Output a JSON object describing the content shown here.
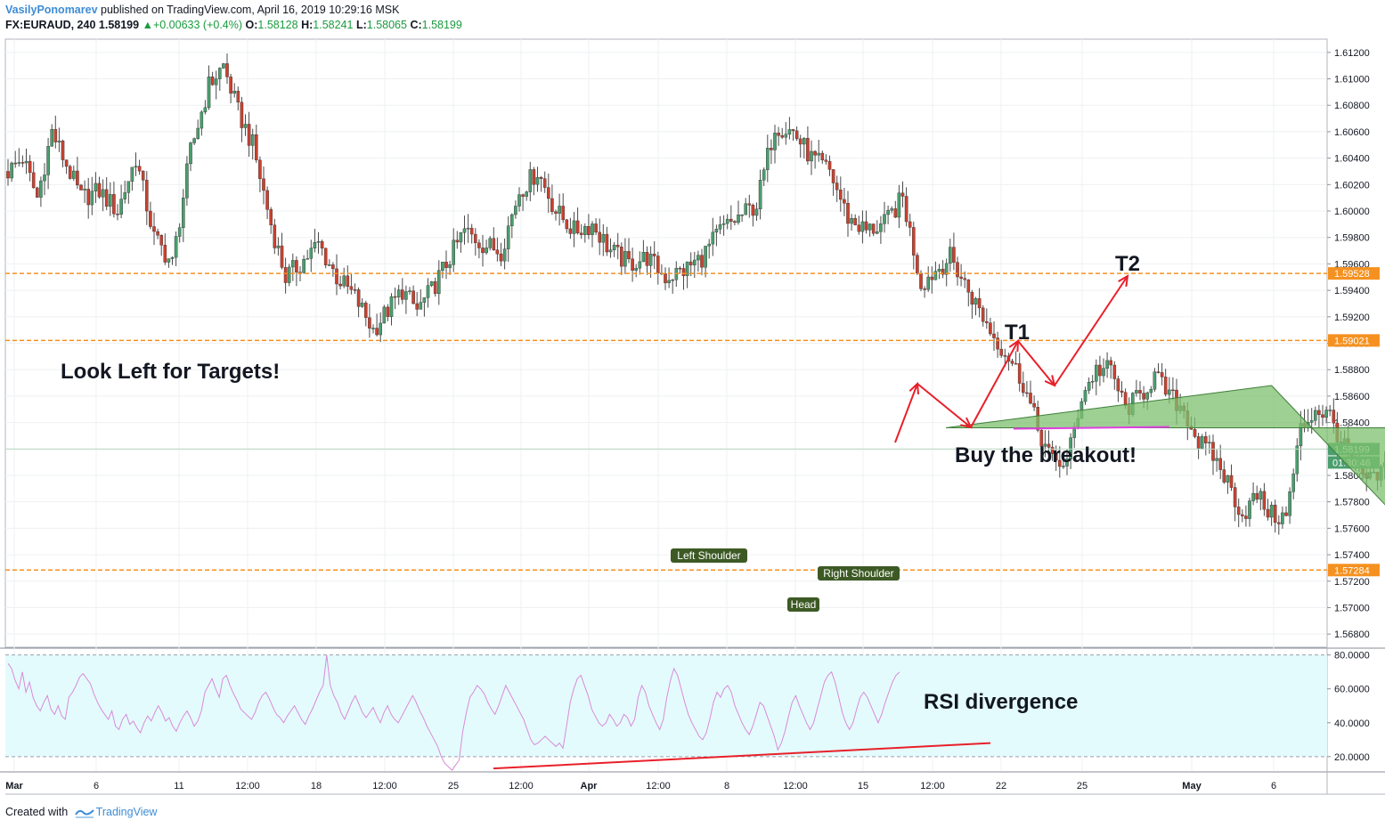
{
  "header": {
    "author": "VasilyPonomarev",
    "published_text": "published on TradingView.com, April 16, 2019 10:29:16 MSK",
    "symbol": "FX:EURAUD, 240",
    "last": "1.58199",
    "change_arrow": "▲",
    "change": "+0.00633 (+0.4%)",
    "o_label": "O:",
    "o_value": "1.58128",
    "h_label": "H:",
    "h_value": "1.58241",
    "l_label": "L:",
    "l_value": "1.58065",
    "c_label": "C:",
    "c_value": "1.58199"
  },
  "footer": {
    "created_with": "Created with",
    "brand": "TradingView",
    "logo_icon": "tradingview-logo-icon"
  },
  "colors": {
    "up": "#4b9e6e",
    "down": "#c9412f",
    "level": "#f59120",
    "neckline": "#e040e0",
    "arrow": "#e8202a",
    "pattern_fill": "#7cc06e",
    "rsi_line": "#d98ad9",
    "rsi_band": "#e4fbfd"
  },
  "annotations": {
    "look_left": "Look Left for Targets!",
    "buy_breakout": "Buy the breakout!",
    "t1": "T1",
    "t2": "T2",
    "rsi_divergence": "RSI divergence",
    "left_shoulder": "Left Shoulder",
    "head": "Head",
    "right_shoulder": "Right Shoulder"
  },
  "chart_data": [
    {
      "type": "candlestick",
      "symbol": "FX:EURAUD, 240",
      "ylim": [
        1.567,
        1.613
      ],
      "y_ticks": [
        "1.61200",
        "1.61000",
        "1.60800",
        "1.60600",
        "1.60400",
        "1.60200",
        "1.60000",
        "1.59800",
        "1.59600",
        "1.59400",
        "1.59200",
        "1.59000",
        "1.58800",
        "1.58600",
        "1.58400",
        "1.58200",
        "1.58000",
        "1.57800",
        "1.57600",
        "1.57400",
        "1.57200",
        "1.57000",
        "1.56800"
      ],
      "x_ticks": [
        "Mar",
        "6",
        "11",
        "12:00",
        "18",
        "12:00",
        "25",
        "12:00",
        "Apr",
        "12:00",
        "8",
        "12:00",
        "15",
        "12:00",
        "22",
        "25",
        "May",
        "6"
      ],
      "levels": [
        {
          "label": "1.59528",
          "value": 1.59528
        },
        {
          "label": "1.59021",
          "value": 1.59021
        },
        {
          "label": "1.57284",
          "value": 1.57284
        }
      ],
      "neckline": 1.5836,
      "last_price_label": "1.58199",
      "last_price": 1.58199,
      "countdown_label": "01:30:46",
      "path_points": [
        [
          0,
          1.603
        ],
        [
          4,
          1.604
        ],
        [
          8,
          1.601
        ],
        [
          12,
          1.606
        ],
        [
          16,
          1.6035
        ],
        [
          20,
          1.601
        ],
        [
          25,
          1.6015
        ],
        [
          30,
          1.6
        ],
        [
          35,
          1.604
        ],
        [
          40,
          1.598
        ],
        [
          45,
          1.596
        ],
        [
          50,
          1.6045
        ],
        [
          55,
          1.6095
        ],
        [
          59,
          1.611
        ],
        [
          63,
          1.6075
        ],
        [
          67,
          1.605
        ],
        [
          72,
          1.599
        ],
        [
          76,
          1.595
        ],
        [
          80,
          1.596
        ],
        [
          85,
          1.5975
        ],
        [
          90,
          1.595
        ],
        [
          95,
          1.5935
        ],
        [
          100,
          1.591
        ],
        [
          104,
          1.5925
        ],
        [
          108,
          1.594
        ],
        [
          112,
          1.5925
        ],
        [
          116,
          1.594
        ],
        [
          120,
          1.596
        ],
        [
          125,
          1.5985
        ],
        [
          130,
          1.5975
        ],
        [
          135,
          1.597
        ],
        [
          140,
          1.6015
        ],
        [
          145,
          1.603
        ],
        [
          150,
          1.6
        ],
        [
          155,
          1.5985
        ],
        [
          160,
          1.599
        ],
        [
          165,
          1.597
        ],
        [
          170,
          1.596
        ],
        [
          175,
          1.5965
        ],
        [
          180,
          1.595
        ],
        [
          185,
          1.5955
        ],
        [
          190,
          1.5965
        ],
        [
          195,
          1.5985
        ],
        [
          200,
          1.5995
        ],
        [
          205,
          1.6005
        ],
        [
          210,
          1.6065
        ],
        [
          215,
          1.606
        ],
        [
          220,
          1.604
        ],
        [
          225,
          1.603
        ],
        [
          230,
          1.5995
        ],
        [
          235,
          1.5985
        ],
        [
          240,
          1.599
        ],
        [
          245,
          1.601
        ],
        [
          250,
          1.5945
        ],
        [
          254,
          1.5955
        ],
        [
          258,
          1.5965
        ],
        [
          262,
          1.5945
        ],
        [
          266,
          1.5925
        ],
        [
          270,
          1.5905
        ],
        [
          274,
          1.589
        ],
        [
          278,
          1.587
        ],
        [
          282,
          1.5835
        ],
        [
          286,
          1.581
        ],
        [
          290,
          1.581
        ],
        [
          294,
          1.586
        ],
        [
          298,
          1.588
        ],
        [
          302,
          1.588
        ],
        [
          306,
          1.585
        ],
        [
          310,
          1.586
        ],
        [
          314,
          1.5875
        ],
        [
          318,
          1.586
        ],
        [
          322,
          1.585
        ],
        [
          326,
          1.5825
        ],
        [
          330,
          1.5815
        ],
        [
          334,
          1.5795
        ],
        [
          338,
          1.577
        ],
        [
          342,
          1.5785
        ],
        [
          346,
          1.577
        ],
        [
          350,
          1.5768
        ],
        [
          354,
          1.5835
        ],
        [
          358,
          1.585
        ],
        [
          362,
          1.5845
        ],
        [
          366,
          1.582
        ],
        [
          370,
          1.58
        ],
        [
          374,
          1.5795
        ],
        [
          378,
          1.581
        ],
        [
          382,
          1.58
        ],
        [
          386,
          1.578
        ],
        [
          390,
          1.5775
        ],
        [
          394,
          1.5762
        ],
        [
          398,
          1.578
        ],
        [
          402,
          1.5785
        ],
        [
          406,
          1.583
        ],
        [
          410,
          1.5825
        ],
        [
          414,
          1.5815
        ],
        [
          418,
          1.58
        ],
        [
          422,
          1.579
        ],
        [
          426,
          1.578
        ],
        [
          430,
          1.5795
        ],
        [
          434,
          1.581
        ],
        [
          438,
          1.5815
        ],
        [
          442,
          1.5795
        ],
        [
          446,
          1.575
        ],
        [
          450,
          1.5722
        ],
        [
          454,
          1.5735
        ],
        [
          458,
          1.5745
        ],
        [
          462,
          1.576
        ],
        [
          466,
          1.578
        ],
        [
          470,
          1.5805
        ],
        [
          474,
          1.583
        ],
        [
          478,
          1.5825
        ],
        [
          482,
          1.579
        ],
        [
          486,
          1.5765
        ],
        [
          490,
          1.5745
        ],
        [
          494,
          1.5755
        ],
        [
          498,
          1.5765
        ],
        [
          502,
          1.5775
        ],
        [
          506,
          1.58
        ],
        [
          510,
          1.5818
        ]
      ]
    },
    {
      "type": "line",
      "name": "RSI",
      "ylim": [
        11.5,
        83.5
      ],
      "y_ticks": [
        "80.0000",
        "60.0000",
        "40.0000",
        "20.0000"
      ],
      "band": [
        20,
        80
      ],
      "divergence_line": [
        [
          0,
          13
        ],
        [
          1,
          28
        ]
      ],
      "values": [
        75,
        72,
        65,
        60,
        70,
        58,
        64,
        55,
        50,
        47,
        52,
        56,
        48,
        45,
        50,
        44,
        42,
        55,
        58,
        62,
        67,
        69,
        66,
        63,
        57,
        52,
        48,
        45,
        42,
        47,
        38,
        36,
        42,
        45,
        39,
        41,
        37,
        34,
        40,
        44,
        41,
        46,
        50,
        46,
        41,
        43,
        38,
        35,
        40,
        44,
        47,
        43,
        38,
        41,
        47,
        58,
        62,
        66,
        60,
        55,
        66,
        68,
        62,
        57,
        53,
        48,
        46,
        44,
        42,
        46,
        52,
        56,
        58,
        54,
        49,
        45,
        43,
        40,
        44,
        47,
        50,
        46,
        42,
        39,
        44,
        48,
        53,
        58,
        62,
        80,
        62,
        56,
        52,
        46,
        42,
        47,
        52,
        56,
        51,
        46,
        43,
        46,
        49,
        44,
        40,
        46,
        50,
        45,
        42,
        40,
        44,
        48,
        52,
        56,
        52,
        47,
        43,
        38,
        34,
        30,
        26,
        20,
        16,
        14,
        12,
        15,
        18,
        35,
        46,
        55,
        58,
        62,
        60,
        57,
        52,
        48,
        45,
        50,
        56,
        62,
        58,
        54,
        50,
        46,
        42,
        36,
        30,
        27,
        28,
        30,
        32,
        30,
        28,
        26,
        28,
        25,
        38,
        52,
        60,
        66,
        68,
        62,
        56,
        48,
        44,
        40,
        38,
        40,
        45,
        42,
        38,
        40,
        45,
        43,
        38,
        42,
        55,
        62,
        58,
        50,
        45,
        40,
        36,
        42,
        55,
        65,
        72,
        68,
        60,
        52,
        45,
        40,
        36,
        32,
        30,
        34,
        42,
        52,
        58,
        55,
        60,
        62,
        58,
        50,
        45,
        40,
        36,
        33,
        38,
        45,
        52,
        50,
        44,
        38,
        32,
        24,
        28,
        35,
        44,
        52,
        56,
        50,
        45,
        40,
        36,
        40,
        48,
        56,
        64,
        68,
        70,
        64,
        55,
        46,
        40,
        36,
        40,
        48,
        55,
        58,
        55,
        50,
        45,
        40,
        45,
        52,
        58,
        64,
        68,
        70
      ]
    }
  ]
}
